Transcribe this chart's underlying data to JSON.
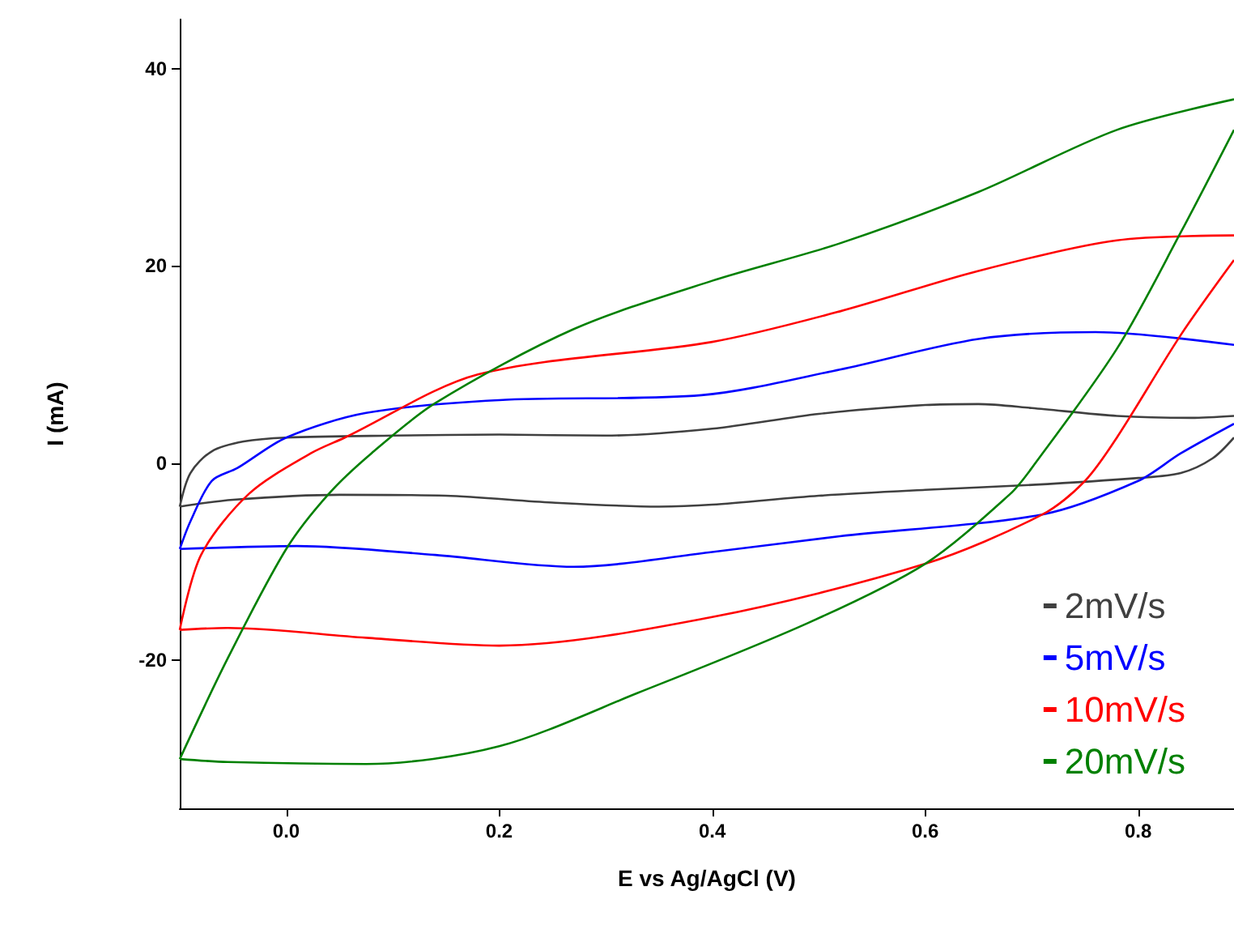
{
  "chart_data": {
    "type": "line",
    "xlabel": "E vs Ag/AgCl (V)",
    "ylabel": "I (mA)",
    "xlim": [
      -0.1,
      0.89
    ],
    "ylim": [
      -35,
      45
    ],
    "xticks": [
      {
        "value": 0,
        "label": "0.0"
      },
      0.2,
      0.4,
      0.6,
      0.8
    ],
    "yticks": [
      -20,
      0,
      20,
      40
    ],
    "grid": false,
    "legend": "bottom right",
    "marker": "none",
    "line_style": "solid",
    "series": [
      {
        "name": "2mV/s",
        "color": "#404040",
        "x": [
          -0.1,
          -0.09,
          -0.07,
          -0.04,
          0,
          0.1,
          0.2,
          0.3,
          0.4,
          0.5,
          0.6,
          0.65,
          0.7,
          0.78,
          0.85,
          0.89
        ],
        "values": [
          -4.4,
          -1,
          1.2,
          2.2,
          2.6,
          2.8,
          2.9,
          2.8,
          3.5,
          5,
          5.9,
          6,
          5.6,
          4.8,
          4.6,
          4.8
        ]
      },
      {
        "color": "#404040",
        "x": [
          0.89,
          0.87,
          0.84,
          0.8,
          0.7,
          0.6,
          0.5,
          0.4,
          0.35,
          0.25,
          0.15,
          0.05,
          -0.05,
          -0.1
        ],
        "values": [
          2.6,
          0.5,
          -1,
          -1.5,
          -2.2,
          -2.7,
          -3.3,
          -4.2,
          -4.4,
          -4,
          -3.3,
          -3.2,
          -3.7,
          -4.4
        ]
      },
      {
        "name": "5mV/s",
        "color": "#0000ff",
        "x": [
          -0.1,
          -0.09,
          -0.07,
          -0.046,
          0,
          0.075,
          0.2,
          0.39,
          0.52,
          0.65,
          0.76,
          0.89
        ],
        "values": [
          -8.7,
          -5.9,
          -1.8,
          -0.5,
          2.6,
          5.1,
          6.4,
          6.9,
          9.5,
          12.6,
          13.3,
          12
        ]
      },
      {
        "color": "#0000ff",
        "x": [
          0.89,
          0.84,
          0.8,
          0.71,
          0.52,
          0.4,
          0.27,
          0.14,
          0.01,
          -0.1
        ],
        "values": [
          4,
          1,
          -1.8,
          -5.2,
          -7.4,
          -9,
          -10.5,
          -9.3,
          -8.4,
          -8.7
        ]
      },
      {
        "name": "10mV/s",
        "color": "#ff0000",
        "x": [
          -0.1,
          -0.08,
          -0.035,
          0.023,
          0.055,
          0.18,
          0.4,
          0.52,
          0.65,
          0.78,
          0.89
        ],
        "values": [
          -16.9,
          -9.3,
          -3.1,
          1,
          2.6,
          9,
          12.3,
          15.4,
          19.5,
          22.6,
          23.1
        ]
      },
      {
        "color": "#ff0000",
        "x": [
          0.89,
          0.84,
          0.78,
          0.75,
          0.71,
          0.6,
          0.4,
          0.2,
          0.075,
          -0.055,
          -0.1
        ],
        "values": [
          20.6,
          13,
          2.6,
          -1.8,
          -5.2,
          -10.2,
          -15.6,
          -18.5,
          -17.7,
          -16.7,
          -16.9
        ]
      },
      {
        "name": "20mV/s",
        "color": "#008000",
        "x": [
          -0.1,
          -0.055,
          0,
          0.04,
          0.08,
          0.14,
          0.27,
          0.4,
          0.52,
          0.65,
          0.78,
          0.89
        ],
        "values": [
          -30,
          -19.8,
          -8.7,
          -3.1,
          1,
          6.1,
          13.6,
          18.5,
          22.3,
          27.5,
          33.8,
          36.9
        ]
      },
      {
        "color": "#008000",
        "x": [
          0.89,
          0.84,
          0.78,
          0.7,
          0.68,
          0.6,
          0.49,
          0.33,
          0.2,
          0.075,
          -0.055,
          -0.1
        ],
        "values": [
          33.8,
          23.4,
          11.6,
          -0.5,
          -3.1,
          -10.2,
          -16.2,
          -23.3,
          -28.7,
          -30.5,
          -30.3,
          -30
        ]
      }
    ]
  }
}
